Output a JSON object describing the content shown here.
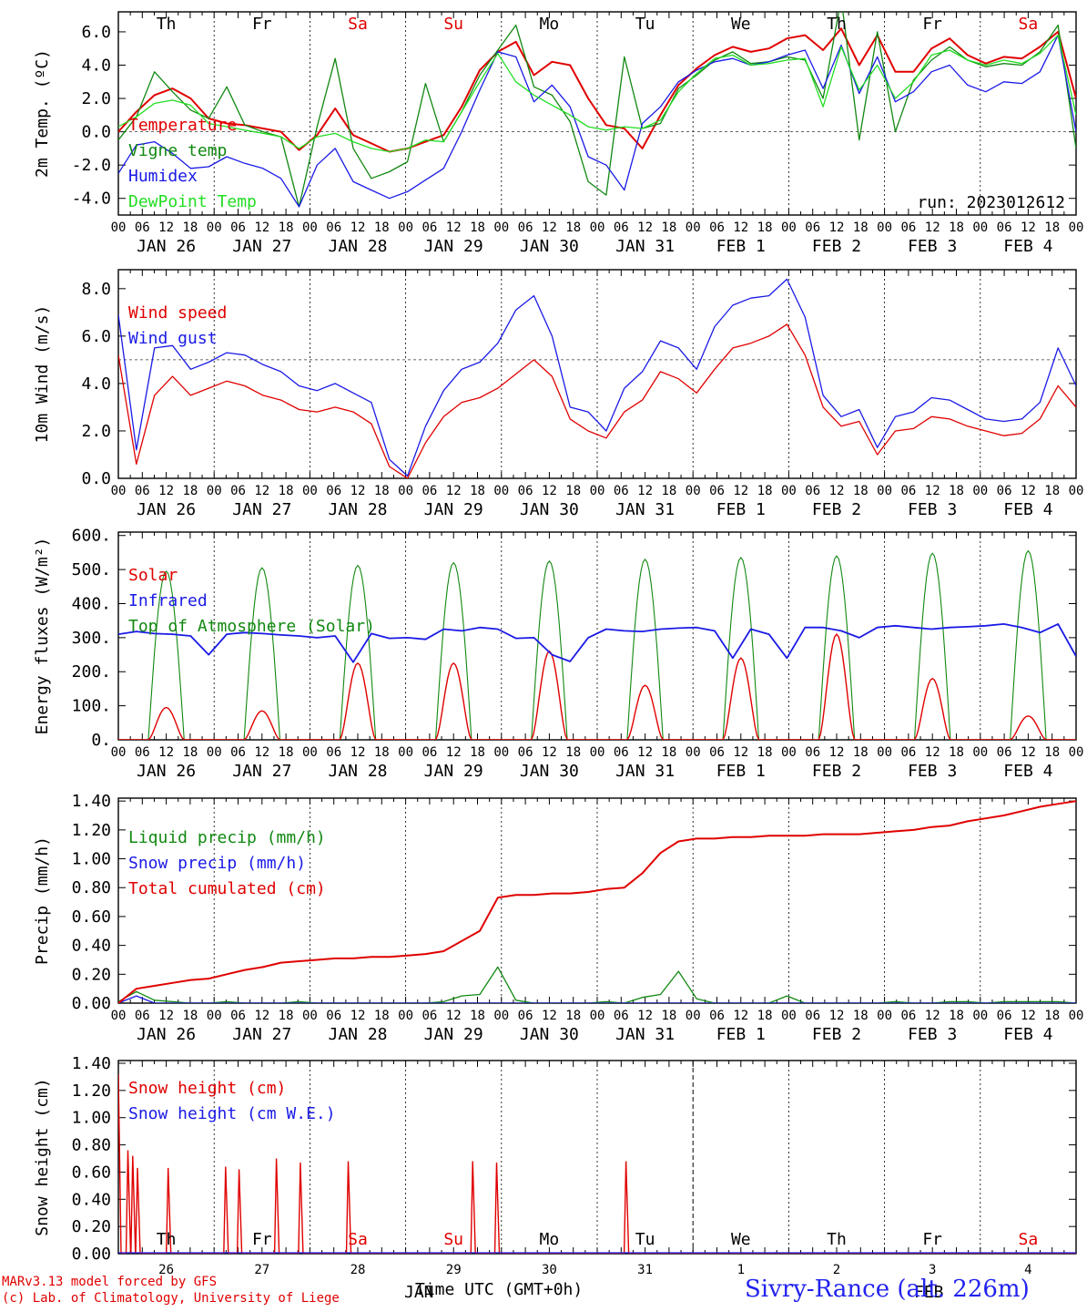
{
  "meta": {
    "run_label": "run: 2023012612",
    "footer_line1": "MARv3.13 model forced by GFS",
    "footer_line2": "(c) Lab. of Climatology, University of Liege",
    "station": "Sivry-Rance (alt. 226m)",
    "time_axis": "Time UTC (GMT+0h)",
    "month_jan": "JAN",
    "month_feb": "FEB"
  },
  "days": {
    "weekday_labels": [
      "Th",
      "Fr",
      "Sa",
      "Su",
      "Mo",
      "Tu",
      "We",
      "Th",
      "Fr",
      "Sa"
    ],
    "weekend_flags": [
      false,
      false,
      true,
      true,
      false,
      false,
      false,
      false,
      false,
      true
    ],
    "date_labels": [
      "JAN 26",
      "JAN 27",
      "JAN 28",
      "JAN 29",
      "JAN 30",
      "JAN 31",
      "FEB  1",
      "FEB  2",
      "FEB  3",
      "FEB  4"
    ],
    "day_numbers": [
      "26",
      "27",
      "28",
      "29",
      "30",
      "31",
      "1",
      "2",
      "3",
      "4"
    ],
    "hour_ticks": [
      "00",
      "06",
      "12",
      "18"
    ],
    "end_tick": "00"
  },
  "colors": {
    "red": "#e00000",
    "green": "#118811",
    "blue": "#1a1ae6",
    "lightgreen": "#22dd22",
    "weekend_label": "#e00000"
  },
  "chart_data": [
    {
      "id": "temp",
      "type": "line",
      "ylabel": "2m Temp. (ºC)",
      "ylim": [
        -5,
        7.2
      ],
      "yticks": [
        -4,
        -2,
        0,
        2,
        4,
        6
      ],
      "ytick_labels": [
        "-4.0",
        "-2.0",
        "0.0",
        "2.0",
        "4.0",
        "6.0"
      ],
      "ref_line": 0,
      "x_hours_step": 6,
      "series": [
        {
          "name": "Temperature",
          "color": "#e00000",
          "values": [
            0,
            1.2,
            2.2,
            2.6,
            2.0,
            0.8,
            0.5,
            0.4,
            0.2,
            0.0,
            -1.1,
            -0.2,
            1.4,
            -0.2,
            -0.7,
            -1.2,
            -1.0,
            -0.6,
            -0.2,
            1.5,
            3.7,
            4.8,
            5.4,
            3.4,
            4.2,
            4.0,
            2.0,
            0.4,
            0.2,
            -1.0,
            1.0,
            2.8,
            3.8,
            4.6,
            5.1,
            4.8,
            5.0,
            5.6,
            5.8,
            4.9,
            6.2,
            4.0,
            5.8,
            3.6,
            3.6,
            5.0,
            5.6,
            4.6,
            4.1,
            4.5,
            4.4,
            5.1,
            6.0,
            2.0
          ]
        },
        {
          "name": "Vigne temp",
          "color": "#118811",
          "values": [
            -0.5,
            0.9,
            3.6,
            2.4,
            1.3,
            0.8,
            2.7,
            0.4,
            0.0,
            -0.3,
            -4.5,
            0.3,
            4.4,
            -1.0,
            -2.8,
            -2.4,
            -1.8,
            2.9,
            -0.6,
            1.2,
            3.4,
            4.9,
            6.4,
            2.7,
            2.2,
            0.6,
            -3.0,
            -3.8,
            4.5,
            0.2,
            0.5,
            2.6,
            3.4,
            4.3,
            4.8,
            4.1,
            4.2,
            4.5,
            4.3,
            2.0,
            8.0,
            -0.5,
            6.0,
            0.0,
            3.1,
            4.3,
            5.1,
            4.3,
            3.9,
            4.1,
            4.0,
            4.8,
            6.4,
            -1.0
          ]
        },
        {
          "name": "Humidex",
          "color": "#1a1ae6",
          "values": [
            -2.5,
            -0.8,
            -0.6,
            -1.3,
            -2.2,
            -2.1,
            -1.5,
            -1.9,
            -2.2,
            -2.8,
            -4.5,
            -2.0,
            -1.0,
            -3.0,
            -3.5,
            -4.0,
            -3.6,
            -2.9,
            -2.2,
            0.0,
            2.5,
            4.8,
            4.5,
            1.8,
            2.8,
            1.5,
            -1.5,
            -2.0,
            -3.5,
            0.5,
            1.5,
            3.0,
            3.7,
            4.2,
            4.4,
            4.0,
            4.2,
            4.6,
            4.9,
            2.6,
            5.2,
            2.3,
            4.5,
            1.8,
            2.4,
            3.6,
            4.0,
            2.8,
            2.4,
            3.0,
            2.9,
            3.6,
            5.8,
            0.0
          ]
        },
        {
          "name": "DewPoint Temp",
          "color": "#22dd22",
          "values": [
            0.3,
            0.9,
            1.7,
            1.9,
            1.6,
            0.5,
            0.3,
            0.1,
            -0.1,
            -0.3,
            -1.0,
            -0.3,
            -0.1,
            -0.6,
            -1.0,
            -1.2,
            -1.0,
            -0.5,
            -0.6,
            1.2,
            3.0,
            4.7,
            3.0,
            2.2,
            1.6,
            1.0,
            0.3,
            0.1,
            0.3,
            0.2,
            0.7,
            2.4,
            3.5,
            4.4,
            4.6,
            4.0,
            4.1,
            4.3,
            4.4,
            1.5,
            5.1,
            2.5,
            4.0,
            2.0,
            3.0,
            4.6,
            4.9,
            4.3,
            4.0,
            4.3,
            4.1,
            4.7,
            5.8,
            1.0
          ]
        }
      ],
      "run_shown": true
    },
    {
      "id": "wind",
      "type": "line",
      "ylabel": "10m Wind (m/s)",
      "ylim": [
        0,
        8.8
      ],
      "yticks": [
        0,
        2,
        4,
        6,
        8
      ],
      "ytick_labels": [
        "0.0",
        "2.0",
        "4.0",
        "6.0",
        "8.0"
      ],
      "ref_line": 5,
      "series": [
        {
          "name": "Wind speed",
          "color": "#e00000",
          "values": [
            5.2,
            0.6,
            3.5,
            4.3,
            3.5,
            3.8,
            4.1,
            3.9,
            3.5,
            3.3,
            2.9,
            2.8,
            3.0,
            2.8,
            2.3,
            0.5,
            0.0,
            1.5,
            2.6,
            3.2,
            3.4,
            3.8,
            4.4,
            5.0,
            4.3,
            2.5,
            2.0,
            1.7,
            2.8,
            3.3,
            4.5,
            4.2,
            3.6,
            4.6,
            5.5,
            5.7,
            6.0,
            6.5,
            5.2,
            3.0,
            2.2,
            2.4,
            1.0,
            2.0,
            2.1,
            2.6,
            2.5,
            2.2,
            2.0,
            1.8,
            1.9,
            2.5,
            3.9,
            3.0
          ]
        },
        {
          "name": "Wind gust",
          "color": "#1a1ae6",
          "values": [
            6.9,
            1.2,
            5.5,
            5.6,
            4.6,
            4.9,
            5.3,
            5.2,
            4.8,
            4.5,
            3.9,
            3.7,
            4.0,
            3.6,
            3.2,
            0.8,
            0.1,
            2.2,
            3.7,
            4.6,
            4.9,
            5.7,
            7.1,
            7.7,
            6.0,
            3.0,
            2.8,
            2.0,
            3.8,
            4.5,
            5.8,
            5.5,
            4.6,
            6.4,
            7.3,
            7.6,
            7.7,
            8.4,
            6.8,
            3.5,
            2.6,
            2.9,
            1.3,
            2.6,
            2.8,
            3.4,
            3.3,
            2.9,
            2.5,
            2.4,
            2.5,
            3.2,
            5.5,
            3.9
          ]
        }
      ]
    },
    {
      "id": "energy",
      "type": "line",
      "ylabel": "Energy fluxes (W/m²)",
      "ylim": [
        0,
        610
      ],
      "yticks": [
        0,
        100,
        200,
        300,
        400,
        500,
        600
      ],
      "ytick_labels": [
        "0.",
        "100.",
        "200.",
        "300.",
        "400.",
        "500.",
        "600."
      ],
      "toa_peaks": [
        495,
        505,
        512,
        520,
        525,
        530,
        535,
        540,
        548,
        555
      ],
      "solar_peaks": [
        95,
        85,
        225,
        225,
        260,
        160,
        240,
        310,
        180,
        70
      ],
      "series": [
        {
          "name": "Solar",
          "color": "#e00000"
        },
        {
          "name": "Infrared",
          "color": "#1a1ae6",
          "values": [
            310,
            318,
            312,
            310,
            305,
            250,
            310,
            315,
            312,
            308,
            305,
            300,
            305,
            228,
            312,
            298,
            300,
            295,
            325,
            320,
            330,
            325,
            298,
            300,
            250,
            230,
            300,
            325,
            320,
            318,
            325,
            328,
            330,
            320,
            240,
            325,
            310,
            240,
            330,
            330,
            320,
            300,
            330,
            335,
            330,
            325,
            330,
            332,
            335,
            340,
            330,
            315,
            340,
            245
          ]
        },
        {
          "name": "Top of Atmosphere (Solar)",
          "color": "#118811"
        }
      ]
    },
    {
      "id": "precip",
      "type": "line",
      "ylabel": "Precip (mm/h)",
      "ylim": [
        0,
        1.42
      ],
      "yticks": [
        0,
        0.2,
        0.4,
        0.6,
        0.8,
        1.0,
        1.2,
        1.4
      ],
      "ytick_labels": [
        "0.00",
        "0.20",
        "0.40",
        "0.60",
        "0.80",
        "1.00",
        "1.20",
        "1.40"
      ],
      "series": [
        {
          "name": "Liquid precip (mm/h)",
          "color": "#118811",
          "values": [
            0.01,
            0.08,
            0.02,
            0.01,
            0.0,
            0.0,
            0.01,
            0.0,
            0.0,
            0.0,
            0.01,
            0.0,
            0.0,
            0.0,
            0.0,
            0.0,
            0.0,
            0.0,
            0.01,
            0.05,
            0.06,
            0.25,
            0.02,
            0.0,
            0.0,
            0.0,
            0.0,
            0.01,
            0.0,
            0.04,
            0.06,
            0.22,
            0.03,
            0.0,
            0.0,
            0.0,
            0.0,
            0.05,
            0.0,
            0.0,
            0.0,
            0.0,
            0.0,
            0.01,
            0.0,
            0.0,
            0.01,
            0.01,
            0.0,
            0.01,
            0.01,
            0.01,
            0.01,
            0.0
          ]
        },
        {
          "name": "Snow precip (mm/h)",
          "color": "#1a1ae6",
          "values": [
            0.0,
            0.05,
            0.0,
            0.0,
            0.0,
            0.0,
            0.0,
            0.0,
            0.0,
            0.0,
            0.0,
            0.0,
            0.0,
            0.0,
            0.0,
            0.0,
            0.0,
            0.0,
            0.0,
            0.0,
            0.0,
            0.0,
            0.0,
            0.0,
            0.0,
            0.0,
            0.0,
            0.0,
            0.0,
            0.0,
            0.0,
            0.0,
            0.0,
            0.0,
            0.0,
            0.0,
            0.0,
            0.0,
            0.0,
            0.0,
            0.0,
            0.0,
            0.0,
            0.0,
            0.0,
            0.0,
            0.0,
            0.0,
            0.0,
            0.0,
            0.0,
            0.0,
            0.0,
            0.0
          ]
        },
        {
          "name": "Total cumulated (cm)",
          "color": "#e00000",
          "values": [
            0.0,
            0.1,
            0.12,
            0.14,
            0.16,
            0.17,
            0.2,
            0.23,
            0.25,
            0.28,
            0.29,
            0.3,
            0.31,
            0.31,
            0.32,
            0.32,
            0.33,
            0.34,
            0.36,
            0.43,
            0.5,
            0.73,
            0.75,
            0.75,
            0.76,
            0.76,
            0.77,
            0.79,
            0.8,
            0.9,
            1.04,
            1.12,
            1.14,
            1.14,
            1.15,
            1.15,
            1.16,
            1.16,
            1.16,
            1.17,
            1.17,
            1.17,
            1.18,
            1.19,
            1.2,
            1.22,
            1.23,
            1.26,
            1.28,
            1.3,
            1.33,
            1.36,
            1.38,
            1.4
          ]
        }
      ]
    },
    {
      "id": "snow",
      "type": "line",
      "ylabel": "Snow height (cm)",
      "ylim": [
        0,
        1.42
      ],
      "yticks": [
        0,
        0.2,
        0.4,
        0.6,
        0.8,
        1.0,
        1.2,
        1.4
      ],
      "ytick_labels": [
        "0.00",
        "0.20",
        "0.40",
        "0.60",
        "0.80",
        "1.00",
        "1.20",
        "1.40"
      ],
      "spikes": [
        [
          0.0,
          1.32
        ],
        [
          0.1,
          0.76
        ],
        [
          0.15,
          0.72
        ],
        [
          0.2,
          0.63
        ],
        [
          0.52,
          0.63
        ],
        [
          1.12,
          0.64
        ],
        [
          1.26,
          0.62
        ],
        [
          1.65,
          0.7
        ],
        [
          1.9,
          0.67
        ],
        [
          2.4,
          0.68
        ],
        [
          3.7,
          0.68
        ],
        [
          3.95,
          0.67
        ],
        [
          5.3,
          0.68
        ]
      ],
      "series": [
        {
          "name": "Snow height (cm)",
          "color": "#e00000"
        },
        {
          "name": "Snow height (cm W.E.)",
          "color": "#1a1ae6"
        }
      ]
    }
  ]
}
